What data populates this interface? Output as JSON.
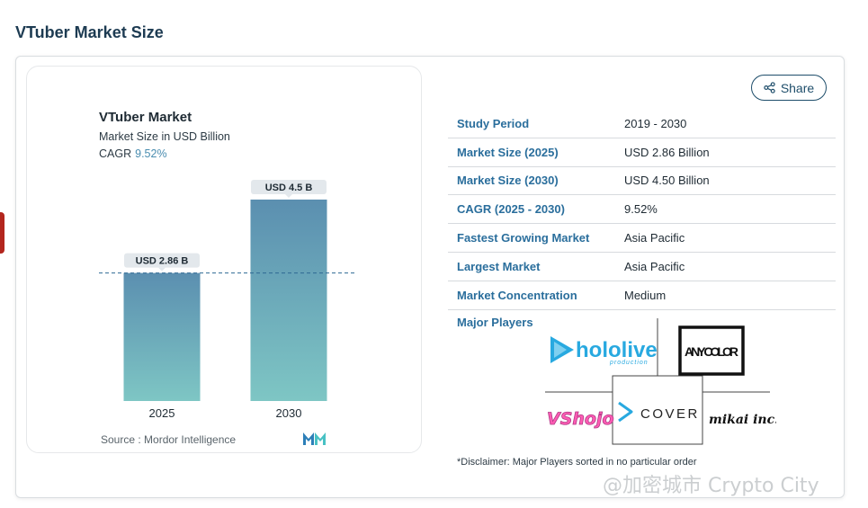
{
  "page": {
    "heading": "VTuber Market Size"
  },
  "chart": {
    "title": "VTuber Market",
    "subtitle": "Market Size in USD Billion",
    "cagr_label": "CAGR",
    "cagr_value": "9.52%",
    "source": "Source :  Mordor Intelligence"
  },
  "chart_data": {
    "type": "bar",
    "title": "VTuber Market",
    "subtitle": "Market Size in USD Billion",
    "categories": [
      "2025",
      "2030"
    ],
    "values": [
      2.86,
      4.5
    ],
    "data_labels": [
      "USD 2.86 B",
      "USD 4.5 B"
    ],
    "ylabel": "Market Size in USD Billion",
    "ylim": [
      0,
      4.7
    ],
    "reference_line": 2.86,
    "grid": false,
    "colors": {
      "bar_top": "#5b8fb0",
      "bar_bottom": "#7ec6c4",
      "label_bg": "#e3e8ec",
      "line": "#2e6a94"
    }
  },
  "share": {
    "label": "Share",
    "icon": "share-icon"
  },
  "facts": [
    {
      "label": "Study Period",
      "value": "2019 - 2030"
    },
    {
      "label": "Market Size (2025)",
      "value": "USD 2.86 Billion"
    },
    {
      "label": "Market Size (2030)",
      "value": "USD 4.50 Billion"
    },
    {
      "label": "CAGR (2025 - 2030)",
      "value": "9.52%"
    },
    {
      "label": "Fastest Growing Market",
      "value": "Asia Pacific"
    },
    {
      "label": "Largest Market",
      "value": "Asia Pacific"
    },
    {
      "label": "Market Concentration",
      "value": "Medium"
    }
  ],
  "players": {
    "label": "Major Players",
    "logos": [
      {
        "name": "hololive",
        "sub": "production"
      },
      {
        "name": "ANY COLOR"
      },
      {
        "name": "VShojo"
      },
      {
        "name": "COVER"
      },
      {
        "name": "mikai inc."
      }
    ]
  },
  "disclaimer": "*Disclaimer: Major Players sorted in no particular order",
  "watermark": "@加密城市 Crypto City",
  "colors": {
    "heading": "#1d3b52",
    "accent": "#2a6e9c"
  }
}
